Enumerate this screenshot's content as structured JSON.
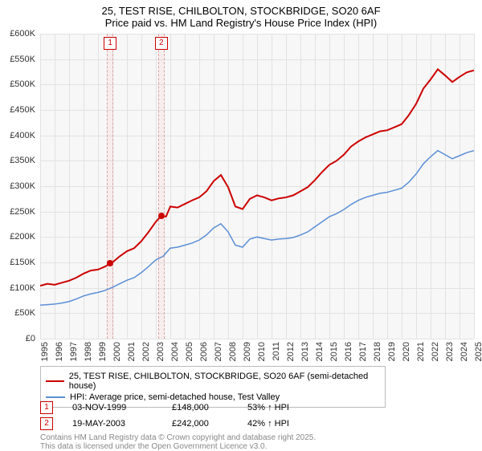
{
  "title": {
    "line1": "25, TEST RISE, CHILBOLTON, STOCKBRIDGE, SO20 6AF",
    "line2": "Price paid vs. HM Land Registry's House Price Index (HPI)"
  },
  "chart": {
    "type": "line",
    "background_color": "#f7f7f7",
    "grid_color": "#e2e2e2",
    "y_axis": {
      "min": 0,
      "max": 600000,
      "tick_step": 50000,
      "labels": [
        "£0",
        "£50K",
        "£100K",
        "£150K",
        "£200K",
        "£250K",
        "£300K",
        "£350K",
        "£400K",
        "£450K",
        "£500K",
        "£550K",
        "£600K"
      ],
      "fontsize": 11
    },
    "x_axis": {
      "min": 1995,
      "max": 2025,
      "tick_step": 1,
      "labels": [
        "1995",
        "1996",
        "1997",
        "1998",
        "1999",
        "2000",
        "2001",
        "2002",
        "2003",
        "2004",
        "2005",
        "2006",
        "2007",
        "2008",
        "2009",
        "2010",
        "2011",
        "2012",
        "2013",
        "2014",
        "2015",
        "2016",
        "2017",
        "2018",
        "2019",
        "2020",
        "2021",
        "2022",
        "2023",
        "2024",
        "2025"
      ],
      "fontsize": 11
    },
    "series": [
      {
        "name": "price_paid",
        "label": "25, TEST RISE, CHILBOLTON, STOCKBRIDGE, SO20 6AF (semi-detached house)",
        "color": "#cc0000",
        "line_width": 2,
        "points": [
          [
            1995,
            104000
          ],
          [
            1995.5,
            108000
          ],
          [
            1996,
            106000
          ],
          [
            1996.5,
            110000
          ],
          [
            1997,
            114000
          ],
          [
            1997.5,
            120000
          ],
          [
            1998,
            128000
          ],
          [
            1998.5,
            134000
          ],
          [
            1999,
            136000
          ],
          [
            1999.5,
            142000
          ],
          [
            1999.84,
            148000
          ],
          [
            2000,
            150000
          ],
          [
            2000.5,
            162000
          ],
          [
            2001,
            172000
          ],
          [
            2001.5,
            178000
          ],
          [
            2002,
            192000
          ],
          [
            2002.5,
            210000
          ],
          [
            2003,
            230000
          ],
          [
            2003.38,
            242000
          ],
          [
            2003.7,
            240000
          ],
          [
            2004,
            260000
          ],
          [
            2004.5,
            258000
          ],
          [
            2005,
            265000
          ],
          [
            2005.5,
            272000
          ],
          [
            2006,
            278000
          ],
          [
            2006.5,
            290000
          ],
          [
            2007,
            310000
          ],
          [
            2007.5,
            322000
          ],
          [
            2008,
            298000
          ],
          [
            2008.5,
            260000
          ],
          [
            2009,
            255000
          ],
          [
            2009.5,
            275000
          ],
          [
            2010,
            282000
          ],
          [
            2010.5,
            278000
          ],
          [
            2011,
            272000
          ],
          [
            2011.5,
            276000
          ],
          [
            2012,
            278000
          ],
          [
            2012.5,
            282000
          ],
          [
            2013,
            290000
          ],
          [
            2013.5,
            298000
          ],
          [
            2014,
            312000
          ],
          [
            2014.5,
            328000
          ],
          [
            2015,
            342000
          ],
          [
            2015.5,
            350000
          ],
          [
            2016,
            362000
          ],
          [
            2016.5,
            378000
          ],
          [
            2017,
            388000
          ],
          [
            2017.5,
            396000
          ],
          [
            2018,
            402000
          ],
          [
            2018.5,
            408000
          ],
          [
            2019,
            410000
          ],
          [
            2019.5,
            416000
          ],
          [
            2020,
            422000
          ],
          [
            2020.5,
            440000
          ],
          [
            2021,
            462000
          ],
          [
            2021.5,
            492000
          ],
          [
            2022,
            510000
          ],
          [
            2022.5,
            530000
          ],
          [
            2023,
            518000
          ],
          [
            2023.5,
            505000
          ],
          [
            2024,
            515000
          ],
          [
            2024.5,
            524000
          ],
          [
            2025,
            528000
          ]
        ]
      },
      {
        "name": "hpi",
        "label": "HPI: Average price, semi-detached house, Test Valley",
        "color": "#5b8fd6",
        "line_width": 1.5,
        "points": [
          [
            1995,
            66000
          ],
          [
            1995.5,
            67000
          ],
          [
            1996,
            68000
          ],
          [
            1996.5,
            70000
          ],
          [
            1997,
            73000
          ],
          [
            1997.5,
            78000
          ],
          [
            1998,
            84000
          ],
          [
            1998.5,
            88000
          ],
          [
            1999,
            91000
          ],
          [
            1999.5,
            95000
          ],
          [
            2000,
            101000
          ],
          [
            2000.5,
            108000
          ],
          [
            2001,
            115000
          ],
          [
            2001.5,
            120000
          ],
          [
            2002,
            130000
          ],
          [
            2002.5,
            142000
          ],
          [
            2003,
            155000
          ],
          [
            2003.5,
            162000
          ],
          [
            2004,
            178000
          ],
          [
            2004.5,
            180000
          ],
          [
            2005,
            184000
          ],
          [
            2005.5,
            188000
          ],
          [
            2006,
            194000
          ],
          [
            2006.5,
            204000
          ],
          [
            2007,
            218000
          ],
          [
            2007.5,
            226000
          ],
          [
            2008,
            210000
          ],
          [
            2008.5,
            184000
          ],
          [
            2009,
            180000
          ],
          [
            2009.5,
            196000
          ],
          [
            2010,
            200000
          ],
          [
            2010.5,
            197000
          ],
          [
            2011,
            194000
          ],
          [
            2011.5,
            196000
          ],
          [
            2012,
            197000
          ],
          [
            2012.5,
            199000
          ],
          [
            2013,
            204000
          ],
          [
            2013.5,
            210000
          ],
          [
            2014,
            220000
          ],
          [
            2014.5,
            230000
          ],
          [
            2015,
            240000
          ],
          [
            2015.5,
            246000
          ],
          [
            2016,
            254000
          ],
          [
            2016.5,
            264000
          ],
          [
            2017,
            272000
          ],
          [
            2017.5,
            278000
          ],
          [
            2018,
            282000
          ],
          [
            2018.5,
            286000
          ],
          [
            2019,
            288000
          ],
          [
            2019.5,
            292000
          ],
          [
            2020,
            296000
          ],
          [
            2020.5,
            308000
          ],
          [
            2021,
            324000
          ],
          [
            2021.5,
            344000
          ],
          [
            2022,
            358000
          ],
          [
            2022.5,
            370000
          ],
          [
            2023,
            362000
          ],
          [
            2023.5,
            354000
          ],
          [
            2024,
            360000
          ],
          [
            2024.5,
            366000
          ],
          [
            2025,
            370000
          ]
        ]
      }
    ],
    "transactions": [
      {
        "id": "1",
        "date": "03-NOV-1999",
        "year": 1999.84,
        "price": 148000,
        "price_label": "£148,000",
        "hpi_delta": "53% ↑ HPI"
      },
      {
        "id": "2",
        "date": "19-MAY-2003",
        "year": 2003.38,
        "price": 242000,
        "price_label": "£242,000",
        "hpi_delta": "42% ↑ HPI"
      }
    ],
    "marker_box": {
      "border_color": "#cc0000",
      "bg": "#ffffff",
      "text_color": "#cc0000",
      "fontsize": 10
    },
    "marker_dot_color": "#cc0000"
  },
  "footer": {
    "line1": "Contains HM Land Registry data © Crown copyright and database right 2025.",
    "line2": "This data is licensed under the Open Government Licence v3.0."
  }
}
